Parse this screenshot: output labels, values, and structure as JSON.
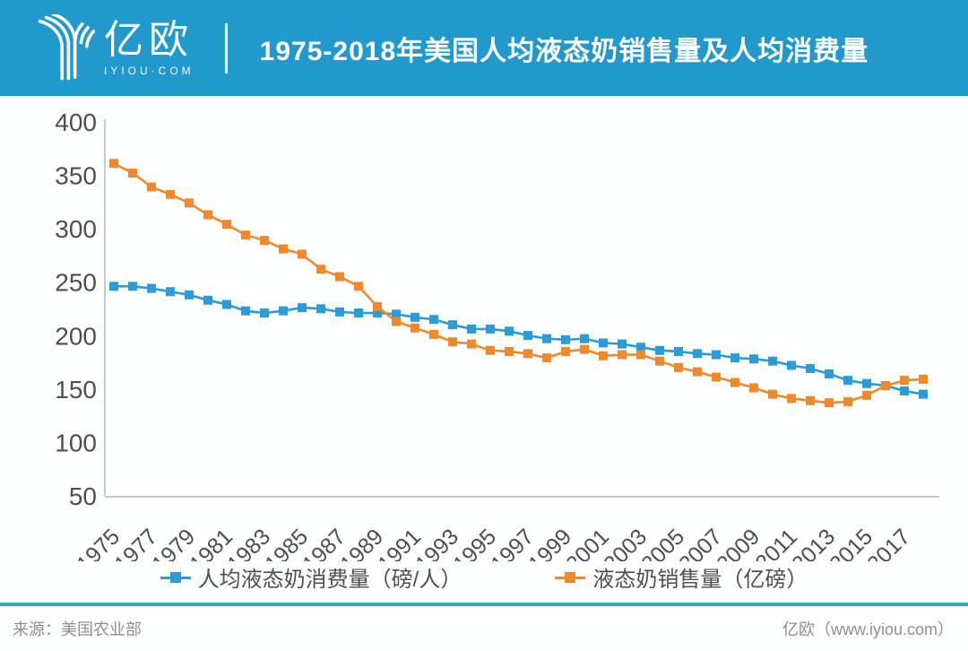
{
  "header": {
    "logo_text": "亿欧",
    "logo_subtext": "IYIOU·COM",
    "title": "1975-2018年美国人均液态奶销售量及人均消费量"
  },
  "footer": {
    "source": "来源：美国农业部",
    "credit": "亿欧（www.iyiou.com）"
  },
  "colors": {
    "header_bg": "#2199CC",
    "consumption_blue": "#2B9CD8",
    "sales_orange": "#F0882C",
    "footer_rule_teal": "#3BA9BC",
    "axis_line": "#C6CBCE",
    "tick_label": "#4F4F4F"
  },
  "chart_data": {
    "type": "line",
    "marker": "square",
    "grid": false,
    "legend_position": "bottom",
    "x": [
      1975,
      1976,
      1977,
      1978,
      1979,
      1980,
      1981,
      1982,
      1983,
      1984,
      1985,
      1986,
      1987,
      1988,
      1989,
      1990,
      1991,
      1992,
      1993,
      1994,
      1995,
      1996,
      1997,
      1998,
      1999,
      2000,
      2001,
      2002,
      2003,
      2004,
      2005,
      2006,
      2007,
      2008,
      2009,
      2010,
      2011,
      2012,
      2013,
      2014,
      2015,
      2016,
      2017,
      2018
    ],
    "xtick_labels": [
      "1975",
      "1977",
      "1979",
      "1981",
      "1983",
      "1985",
      "1987",
      "1989",
      "1991",
      "1993",
      "1995",
      "1997",
      "1999",
      "2001",
      "2003",
      "2005",
      "2007",
      "2009",
      "2011",
      "2013",
      "2015",
      "2017"
    ],
    "ylim": [
      50,
      400
    ],
    "ytick_step": 50,
    "yticks": [
      400,
      350,
      300,
      250,
      200,
      150,
      100,
      50
    ],
    "series": [
      {
        "name": "人均液态奶消费量（磅/人）",
        "key": "consumption",
        "color": "#2B9CD8",
        "values": [
          247,
          247,
          245,
          242,
          239,
          234,
          230,
          224,
          222,
          224,
          227,
          226,
          223,
          222,
          222,
          221,
          218,
          216,
          211,
          207,
          207,
          205,
          201,
          198,
          197,
          198,
          194,
          193,
          190,
          187,
          186,
          184,
          183,
          180,
          179,
          177,
          173,
          170,
          165,
          159,
          156,
          154,
          149,
          146
        ]
      },
      {
        "name": "液态奶销售量（亿磅）",
        "key": "sales",
        "color": "#F0882C",
        "values": [
          362,
          353,
          340,
          333,
          325,
          314,
          305,
          295,
          290,
          282,
          277,
          263,
          256,
          247,
          228,
          214,
          208,
          202,
          195,
          193,
          187,
          186,
          184,
          180,
          186,
          188,
          182,
          183,
          183,
          177,
          171,
          167,
          162,
          157,
          152,
          146,
          142,
          140,
          138,
          139,
          145,
          154,
          159,
          160
        ]
      }
    ]
  }
}
